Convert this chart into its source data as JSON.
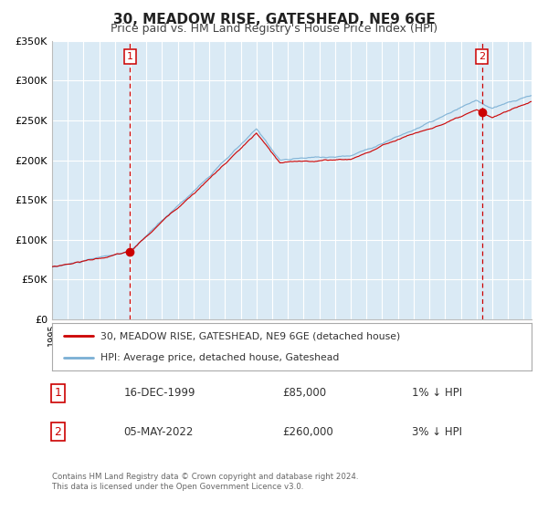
{
  "title": "30, MEADOW RISE, GATESHEAD, NE9 6GE",
  "subtitle": "Price paid vs. HM Land Registry's House Price Index (HPI)",
  "background_color": "#ffffff",
  "plot_bg_color": "#daeaf5",
  "grid_color": "#ffffff",
  "ylim": [
    0,
    350000
  ],
  "yticks": [
    0,
    50000,
    100000,
    150000,
    200000,
    250000,
    300000,
    350000
  ],
  "ytick_labels": [
    "£0",
    "£50K",
    "£100K",
    "£150K",
    "£200K",
    "£250K",
    "£300K",
    "£350K"
  ],
  "xlim_start": 1995.0,
  "xlim_end": 2025.5,
  "sale1_x": 1999.958,
  "sale1_y": 85000,
  "sale1_date": "16-DEC-1999",
  "sale1_price": 85000,
  "sale1_label": "1% ↓ HPI",
  "sale2_x": 2022.338,
  "sale2_y": 260000,
  "sale2_date": "05-MAY-2022",
  "sale2_price": 260000,
  "sale2_label": "3% ↓ HPI",
  "legend_line1": "30, MEADOW RISE, GATESHEAD, NE9 6GE (detached house)",
  "legend_line2": "HPI: Average price, detached house, Gateshead",
  "footer1": "Contains HM Land Registry data © Crown copyright and database right 2024.",
  "footer2": "This data is licensed under the Open Government Licence v3.0.",
  "hpi_color": "#7aafd4",
  "price_color": "#cc0000",
  "vline_color": "#cc0000",
  "marker_color": "#cc0000",
  "title_fontsize": 11,
  "subtitle_fontsize": 9
}
